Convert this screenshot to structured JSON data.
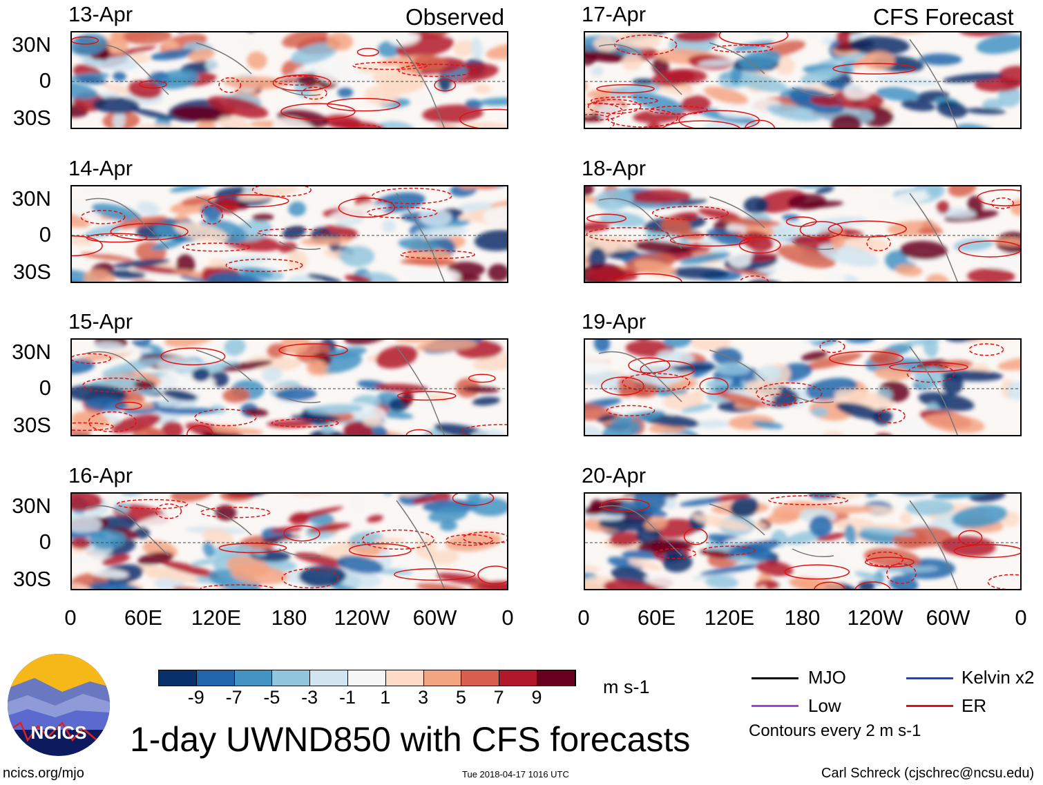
{
  "headers": {
    "observed": "Observed",
    "forecast": "CFS Forecast"
  },
  "observed_panels": [
    "13-Apr",
    "14-Apr",
    "15-Apr",
    "16-Apr"
  ],
  "forecast_panels": [
    "17-Apr",
    "18-Apr",
    "19-Apr",
    "20-Apr"
  ],
  "lat_labels": [
    "30N",
    "0",
    "30S"
  ],
  "lon_labels": [
    "0",
    "60E",
    "120E",
    "180",
    "120W",
    "60W",
    "0"
  ],
  "colorbar": {
    "colors": [
      "#08306b",
      "#2166ac",
      "#4393c3",
      "#92c5de",
      "#d1e5f0",
      "#f7f7f7",
      "#fddbc7",
      "#f4a582",
      "#d6604d",
      "#b2182b",
      "#67001f"
    ],
    "labels": [
      "-9",
      "-7",
      "-5",
      "-3",
      "-1",
      "1",
      "3",
      "5",
      "7",
      "9"
    ],
    "units": "m s-1"
  },
  "legend": {
    "items": [
      {
        "label": "MJO",
        "color": "#000000"
      },
      {
        "label": "Kelvin x2",
        "color": "#1f3fd9"
      },
      {
        "label": "Low",
        "color": "#a040e0"
      },
      {
        "label": "ER",
        "color": "#e01010"
      }
    ],
    "note": "Contours every 2 m s-1"
  },
  "logo_text": "NCICS",
  "title": "1-day UWND850 with CFS forecasts",
  "footer": {
    "left": "ncics.org/mjo",
    "center": "Tue 2018-04-17 1016 UTC",
    "right": "Carl Schreck (cjschrec@ncsu.edu)"
  }
}
